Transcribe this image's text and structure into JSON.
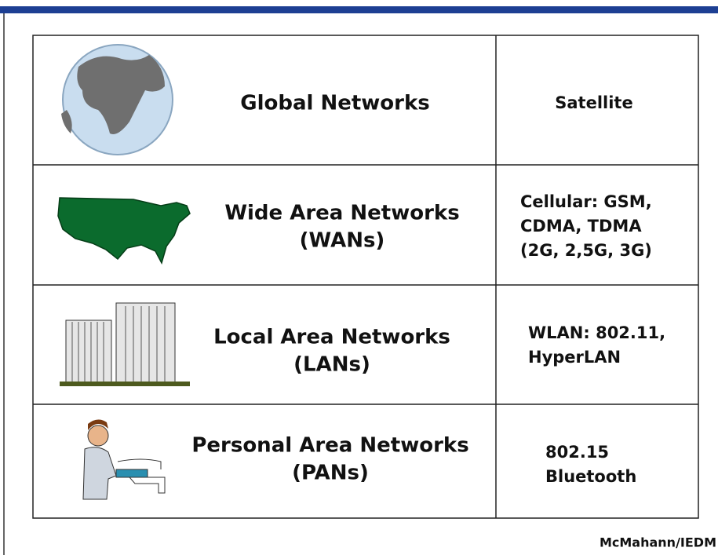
{
  "table": {
    "rows": [
      {
        "network": [
          "Global Networks"
        ],
        "technology": [
          "Satellite"
        ]
      },
      {
        "network": [
          "Wide Area Networks",
          "(WANs)"
        ],
        "technology": [
          "Cellular: GSM,",
          "CDMA, TDMA",
          "(2G, 2,5G, 3G)"
        ]
      },
      {
        "network": [
          "Local Area Networks",
          "(LANs)"
        ],
        "technology": [
          "WLAN: 802.11,",
          "HyperLAN"
        ]
      },
      {
        "network": [
          "Personal Area Networks",
          "(PANs)"
        ],
        "technology": [
          "802.15",
          "Bluetooth"
        ]
      }
    ]
  },
  "footer": {
    "credit": "McMahann/IEDM"
  }
}
